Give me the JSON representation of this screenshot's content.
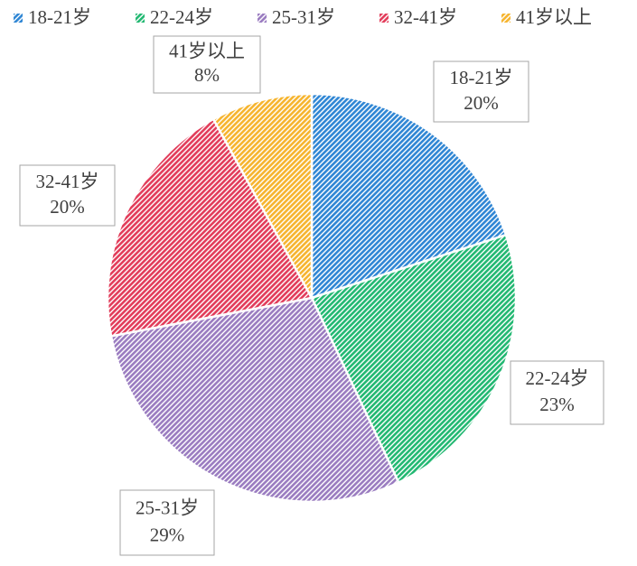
{
  "chart_data": {
    "type": "pie",
    "categories": [
      "18-21岁",
      "22-24岁",
      "25-31岁",
      "32-41岁",
      "41岁以上"
    ],
    "values": [
      20,
      23,
      29,
      20,
      8
    ],
    "value_labels": [
      "20%",
      "23%",
      "29%",
      "20%",
      "8%"
    ],
    "colors": [
      "#2f86d4",
      "#22b872",
      "#9a7cc0",
      "#e23c5a",
      "#f6b42e"
    ],
    "legend": "top"
  }
}
